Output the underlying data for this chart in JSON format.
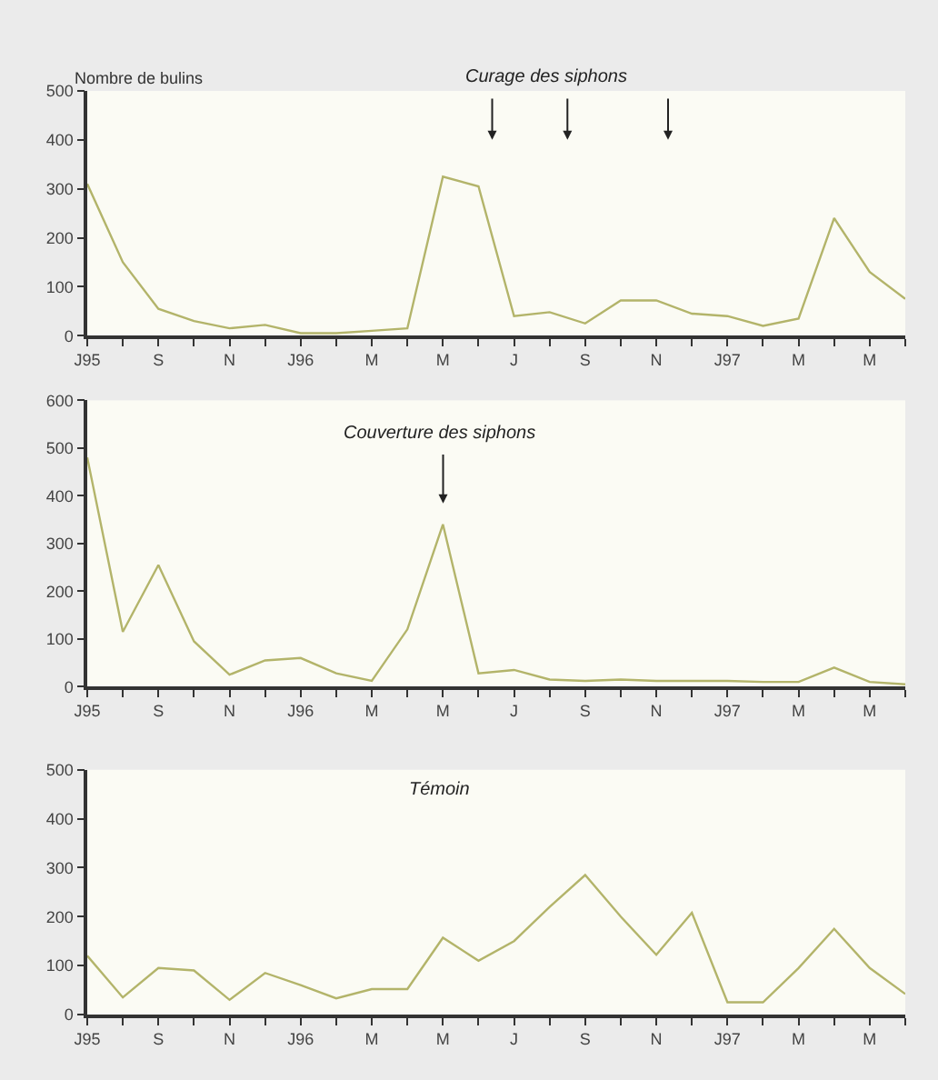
{
  "chart_data": [
    {
      "type": "line",
      "ylabel": "Nombre de bulins",
      "categories": [
        "J95",
        null,
        "S",
        null,
        "N",
        null,
        "J96",
        null,
        "M",
        null,
        "M",
        null,
        "J",
        null,
        "S",
        null,
        "N",
        null,
        "J97",
        null,
        "M",
        null,
        "M",
        null
      ],
      "series": [
        {
          "color": "#b3b46a",
          "values": [
            310,
            150,
            55,
            30,
            15,
            22,
            5,
            5,
            10,
            15,
            325,
            305,
            40,
            48,
            25,
            72,
            72,
            45,
            40,
            20,
            35,
            240,
            130,
            75
          ]
        }
      ],
      "ylim": [
        0,
        500
      ],
      "yticks": [
        0,
        100,
        200,
        300,
        400,
        500
      ],
      "annotations": [
        "Curage des siphons"
      ],
      "grid": false,
      "marker": "none",
      "line_style": "solid"
    },
    {
      "type": "line",
      "categories": [
        "J95",
        null,
        "S",
        null,
        "N",
        null,
        "J96",
        null,
        "M",
        null,
        "M",
        null,
        "J",
        null,
        "S",
        null,
        "N",
        null,
        "J97",
        null,
        "M",
        null,
        "M",
        null
      ],
      "series": [
        {
          "color": "#b3b46a",
          "values": [
            480,
            115,
            255,
            95,
            25,
            55,
            60,
            28,
            12,
            120,
            340,
            28,
            35,
            15,
            12,
            15,
            12,
            12,
            12,
            10,
            10,
            40,
            10,
            5
          ]
        }
      ],
      "ylim": [
        0,
        600
      ],
      "yticks": [
        0,
        100,
        200,
        300,
        400,
        500,
        600
      ],
      "annotations": [
        "Couverture des siphons"
      ],
      "grid": false,
      "marker": "none",
      "line_style": "solid"
    },
    {
      "type": "line",
      "categories": [
        "J95",
        null,
        "S",
        null,
        "N",
        null,
        "J96",
        null,
        "M",
        null,
        "M",
        null,
        "J",
        null,
        "S",
        null,
        "N",
        null,
        "J97",
        null,
        "M",
        null,
        "M",
        null
      ],
      "series": [
        {
          "color": "#b3b46a",
          "values": [
            120,
            35,
            95,
            90,
            30,
            85,
            60,
            33,
            52,
            52,
            157,
            110,
            150,
            220,
            285,
            200,
            122,
            208,
            25,
            25,
            95,
            175,
            95,
            42
          ]
        }
      ],
      "ylim": [
        0,
        500
      ],
      "yticks": [
        0,
        100,
        200,
        300,
        400,
        500
      ],
      "annotations": [
        "Témoin"
      ],
      "grid": false,
      "marker": "none",
      "line_style": "solid"
    }
  ]
}
